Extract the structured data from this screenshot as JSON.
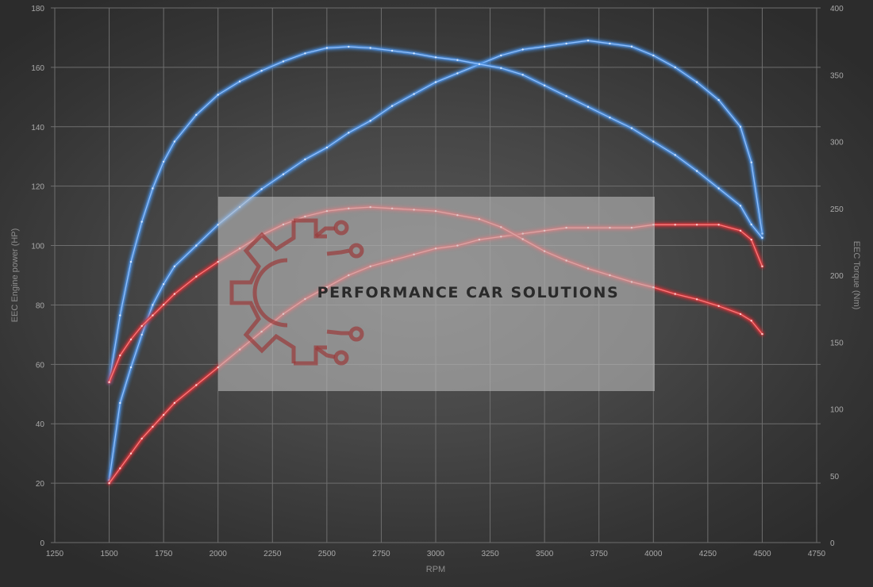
{
  "chart_data": {
    "type": "line",
    "xlabel": "RPM",
    "ylabel": "EEC Engine power (HP)",
    "y2label": "EEC Torque (Nm)",
    "xlim": [
      1250,
      4750
    ],
    "ylim": [
      0,
      180
    ],
    "y2lim": [
      0,
      400
    ],
    "xticks": [
      1250,
      1500,
      1750,
      2000,
      2250,
      2500,
      2750,
      3000,
      3250,
      3500,
      3750,
      4000,
      4250,
      4500,
      4750
    ],
    "yticks": [
      0,
      20,
      40,
      60,
      80,
      100,
      120,
      140,
      160,
      180
    ],
    "y2ticks": [
      0,
      50,
      100,
      150,
      200,
      250,
      300,
      350,
      400
    ],
    "grid": true,
    "watermark": "PERFORMANCE CAR SOLUTIONS",
    "series": [
      {
        "color": "#4a90e2",
        "axis": "left",
        "x": [
          1500,
          1550,
          1600,
          1650,
          1700,
          1750,
          1800,
          1900,
          2000,
          2100,
          2200,
          2300,
          2400,
          2500,
          2600,
          2700,
          2800,
          2900,
          3000,
          3100,
          3200,
          3300,
          3400,
          3500,
          3600,
          3700,
          3800,
          3900,
          4000,
          4100,
          4200,
          4300,
          4400,
          4450,
          4500
        ],
        "values": [
          21,
          47,
          59,
          70,
          80,
          87,
          93,
          100,
          107,
          113,
          119,
          124,
          129,
          133,
          138,
          142,
          147,
          151,
          155,
          158,
          161,
          164,
          166,
          167,
          168,
          169,
          168,
          167,
          164,
          160,
          155,
          149,
          140,
          128,
          104
        ]
      },
      {
        "color": "#4a90e2",
        "axis": "right",
        "x": [
          1500,
          1550,
          1600,
          1650,
          1700,
          1750,
          1800,
          1900,
          2000,
          2100,
          2200,
          2300,
          2400,
          2500,
          2600,
          2700,
          2800,
          2900,
          3000,
          3100,
          3200,
          3300,
          3400,
          3500,
          3600,
          3700,
          3800,
          3900,
          4000,
          4100,
          4200,
          4300,
          4400,
          4450,
          4500
        ],
        "values": [
          120,
          170,
          210,
          240,
          265,
          285,
          300,
          320,
          335,
          345,
          353,
          360,
          366,
          370,
          371,
          370,
          368,
          366,
          363,
          361,
          358,
          355,
          350,
          342,
          334,
          326,
          318,
          310,
          300,
          290,
          278,
          265,
          252,
          238,
          228
        ]
      },
      {
        "color": "#d0343a",
        "axis": "left",
        "x": [
          1500,
          1550,
          1600,
          1650,
          1700,
          1750,
          1800,
          1900,
          2000,
          2100,
          2200,
          2300,
          2400,
          2500,
          2600,
          2700,
          2800,
          2900,
          3000,
          3100,
          3200,
          3300,
          3400,
          3500,
          3600,
          3700,
          3800,
          3900,
          4000,
          4100,
          4200,
          4300,
          4400,
          4450,
          4500
        ],
        "values": [
          20,
          25,
          30,
          35,
          39,
          43,
          47,
          53,
          59,
          65,
          71,
          77,
          82,
          86,
          90,
          93,
          95,
          97,
          99,
          100,
          102,
          103,
          104,
          105,
          106,
          106,
          106,
          106,
          107,
          107,
          107,
          107,
          105,
          102,
          93
        ]
      },
      {
        "color": "#d0343a",
        "axis": "right",
        "x": [
          1500,
          1550,
          1600,
          1650,
          1700,
          1750,
          1800,
          1900,
          2000,
          2100,
          2200,
          2300,
          2400,
          2500,
          2600,
          2700,
          2800,
          2900,
          3000,
          3100,
          3200,
          3300,
          3400,
          3500,
          3600,
          3700,
          3800,
          3900,
          4000,
          4100,
          4200,
          4300,
          4400,
          4450,
          4500
        ],
        "values": [
          120,
          140,
          152,
          162,
          170,
          178,
          186,
          199,
          210,
          220,
          230,
          238,
          244,
          248,
          250,
          251,
          250,
          249,
          248,
          245,
          242,
          236,
          227,
          218,
          211,
          205,
          200,
          195,
          191,
          186,
          182,
          177,
          171,
          166,
          156
        ]
      }
    ]
  }
}
